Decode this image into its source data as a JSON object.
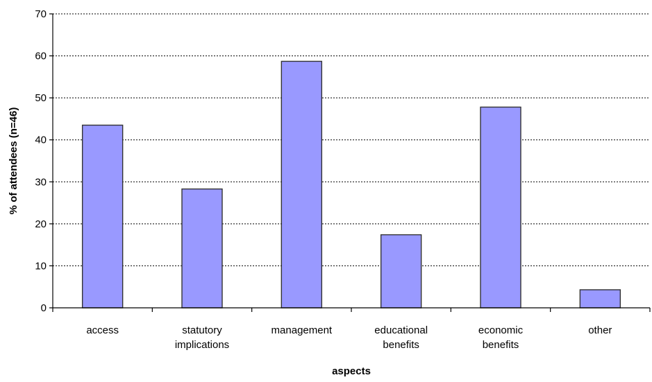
{
  "chart_data": {
    "type": "bar",
    "xlabel": "aspects",
    "ylabel": "% of attendees (n=46)",
    "categories": [
      [
        "access"
      ],
      [
        "statutory",
        "implications"
      ],
      [
        "management"
      ],
      [
        "educational",
        "benefits"
      ],
      [
        "economic",
        "benefits"
      ],
      [
        "other"
      ]
    ],
    "values": [
      43.5,
      28.3,
      58.7,
      17.4,
      47.8,
      4.3
    ],
    "ylim": [
      0,
      70
    ],
    "yticks": [
      0,
      10,
      20,
      30,
      40,
      50,
      60,
      70
    ],
    "grid": true,
    "grid_style": "dotted horizontal",
    "legend": "none",
    "colors": {
      "bar": "#9999ff",
      "bar_border": "#333333"
    }
  }
}
